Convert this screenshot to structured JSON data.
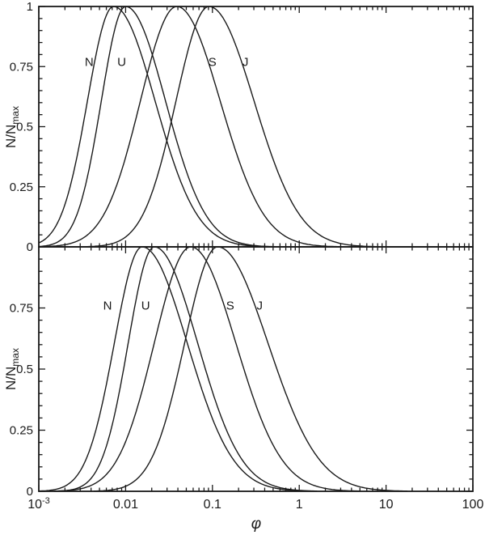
{
  "figure": {
    "background": "#ffffff",
    "line_color": "#1a1a1a"
  },
  "chart_data": {
    "type": "line",
    "title": "",
    "xlabel": "φ",
    "ylabel_base": "N/N",
    "ylabel_sub": "max",
    "x_scale": "log10",
    "x_range_log10": [
      -3,
      2
    ],
    "x_range": [
      0.001,
      100
    ],
    "y_range": [
      0,
      1
    ],
    "grid": false,
    "legend": "inline-curve-labels",
    "x_major_ticks_log10": [
      -3,
      -2,
      -1,
      0,
      1,
      2
    ],
    "x_tick_labels": [
      {
        "base": "10",
        "sup": "-3"
      },
      {
        "base": "0.01"
      },
      {
        "base": "0.1"
      },
      {
        "base": "1"
      },
      {
        "base": "10"
      },
      {
        "base": "100"
      }
    ],
    "y_major_ticks": [
      0,
      0.25,
      0.5,
      0.75,
      1
    ],
    "y_minor_step": 0.05,
    "panels": [
      {
        "id": "top",
        "y_tick_labels": [
          {
            "v": 1,
            "t": "1"
          },
          {
            "v": 0.75,
            "t": "0.75"
          },
          {
            "v": 0.5,
            "t": "0.5"
          },
          {
            "v": 0.25,
            "t": "0.25"
          },
          {
            "v": 0,
            "t": "0"
          }
        ],
        "series": [
          {
            "label": "N",
            "peak_phi": 0.0072,
            "peak_y": 1.0,
            "mu_log10": -2.14,
            "sigma_left": 0.3,
            "sigma_right": 0.48,
            "label_phi": 0.0038,
            "label_y": 0.77
          },
          {
            "label": "U",
            "peak_phi": 0.01,
            "peak_y": 1.0,
            "mu_log10": -2.0,
            "sigma_left": 0.28,
            "sigma_right": 0.46,
            "label_phi": 0.009,
            "label_y": 0.77
          },
          {
            "label": "S",
            "peak_phi": 0.039,
            "peak_y": 1.0,
            "mu_log10": -1.41,
            "sigma_left": 0.42,
            "sigma_right": 0.5,
            "label_phi": 0.1,
            "label_y": 0.77
          },
          {
            "label": "J",
            "peak_phi": 0.092,
            "peak_y": 1.0,
            "mu_log10": -1.04,
            "sigma_left": 0.38,
            "sigma_right": 0.52,
            "label_phi": 0.24,
            "label_y": 0.77
          }
        ]
      },
      {
        "id": "bottom",
        "y_tick_labels": [
          {
            "v": 0.75,
            "t": "0.75"
          },
          {
            "v": 0.5,
            "t": "0.5"
          },
          {
            "v": 0.25,
            "t": "0.25"
          },
          {
            "v": 0,
            "t": "0"
          }
        ],
        "series": [
          {
            "label": "N",
            "peak_phi": 0.0155,
            "peak_y": 1.0,
            "mu_log10": -1.81,
            "sigma_left": 0.32,
            "sigma_right": 0.52,
            "label_phi": 0.0062,
            "label_y": 0.76
          },
          {
            "label": "U",
            "peak_phi": 0.021,
            "peak_y": 1.0,
            "mu_log10": -1.67,
            "sigma_left": 0.3,
            "sigma_right": 0.5,
            "label_phi": 0.017,
            "label_y": 0.76
          },
          {
            "label": "S",
            "peak_phi": 0.056,
            "peak_y": 1.0,
            "mu_log10": -1.25,
            "sigma_left": 0.42,
            "sigma_right": 0.52,
            "label_phi": 0.16,
            "label_y": 0.76
          },
          {
            "label": "J",
            "peak_phi": 0.115,
            "peak_y": 1.0,
            "mu_log10": -0.94,
            "sigma_left": 0.38,
            "sigma_right": 0.58,
            "label_phi": 0.35,
            "label_y": 0.76
          }
        ]
      }
    ]
  }
}
